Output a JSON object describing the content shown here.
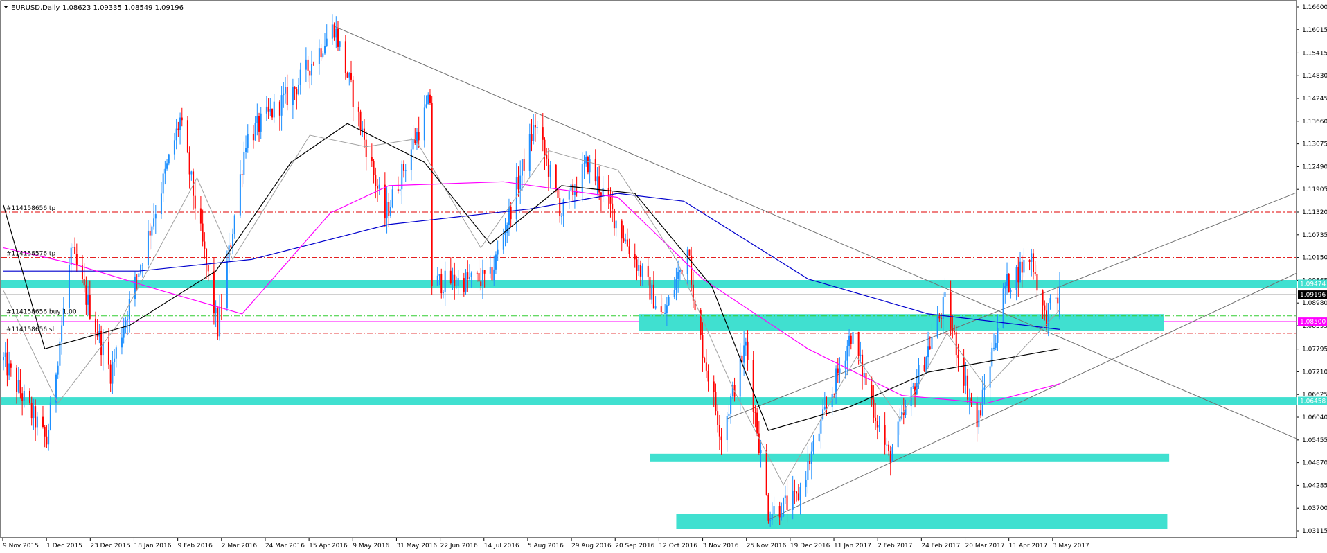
{
  "chart_data": {
    "type": "candlestick",
    "symbol_line": {
      "symbol": "EURUSD",
      "timeframe": "Daily",
      "title": "EURUSD,Daily",
      "ohlc_text": "1.08623 1.09335 1.08549 1.09196",
      "open": 1.08623,
      "high": 1.09335,
      "low": 1.08549,
      "close": 1.09196
    },
    "ylim": [
      1.03115,
      1.166
    ],
    "y_ticks": [
      "1.16600",
      "1.16015",
      "1.15415",
      "1.14830",
      "1.14245",
      "1.13660",
      "1.13075",
      "1.12490",
      "1.11905",
      "1.11320",
      "1.10735",
      "1.10150",
      "1.09565",
      "1.08980",
      "1.08395",
      "1.07795",
      "1.07210",
      "1.06625",
      "1.06040",
      "1.05455",
      "1.04870",
      "1.04285",
      "1.03700",
      "1.03115"
    ],
    "x_ticks": [
      "9 Nov 2015",
      "1 Dec 2015",
      "23 Dec 2015",
      "18 Jan 2016",
      "9 Feb 2016",
      "2 Mar 2016",
      "24 Mar 2016",
      "15 Apr 2016",
      "9 May 2016",
      "31 May 2016",
      "22 Jun 2016",
      "14 Jul 2016",
      "5 Aug 2016",
      "29 Aug 2016",
      "20 Sep 2016",
      "12 Oct 2016",
      "3 Nov 2016",
      "25 Nov 2016",
      "19 Dec 2016",
      "11 Jan 2017",
      "2 Feb 2017",
      "24 Feb 2017",
      "20 Mar 2017",
      "11 Apr 2017",
      "3 May 2017"
    ],
    "x_range": [
      "2015-11-09",
      "2017-05-24"
    ],
    "colors": {
      "bull": "#1E90FF",
      "bear": "#FF0000",
      "zone": "#40E0D0",
      "ma_blue": "#0000CD",
      "ma_magenta": "#FF00FF",
      "ma_black": "#000000",
      "ma_gray": "#A0A0A0",
      "trendline": "#707070",
      "order_line": "#E00000",
      "price_line": "#808080"
    },
    "key_points": [
      {
        "date": "2015-11-09",
        "price": 1.075
      },
      {
        "date": "2015-12-02",
        "price": 1.054
      },
      {
        "date": "2015-12-15",
        "price": 1.103
      },
      {
        "date": "2016-01-05",
        "price": 1.072
      },
      {
        "date": "2016-02-11",
        "price": 1.137
      },
      {
        "date": "2016-03-02",
        "price": 1.083
      },
      {
        "date": "2016-03-17",
        "price": 1.132
      },
      {
        "date": "2016-04-12",
        "price": 1.145
      },
      {
        "date": "2016-05-03",
        "price": 1.161
      },
      {
        "date": "2016-05-30",
        "price": 1.112
      },
      {
        "date": "2016-06-23",
        "price": 1.142
      },
      {
        "date": "2016-06-24",
        "price": 1.095
      },
      {
        "date": "2016-07-25",
        "price": 1.096
      },
      {
        "date": "2016-08-18",
        "price": 1.136
      },
      {
        "date": "2016-09-01",
        "price": 1.113
      },
      {
        "date": "2016-09-15",
        "price": 1.126
      },
      {
        "date": "2016-10-25",
        "price": 1.086
      },
      {
        "date": "2016-11-08",
        "price": 1.105
      },
      {
        "date": "2016-11-10",
        "price": 1.089
      },
      {
        "date": "2016-11-25",
        "price": 1.056
      },
      {
        "date": "2016-12-08",
        "price": 1.079
      },
      {
        "date": "2016-12-20",
        "price": 1.036
      },
      {
        "date": "2017-01-04",
        "price": 1.039
      },
      {
        "date": "2017-02-02",
        "price": 1.082
      },
      {
        "date": "2017-02-22",
        "price": 1.05
      },
      {
        "date": "2017-03-24",
        "price": 1.09
      },
      {
        "date": "2017-04-10",
        "price": 1.058
      },
      {
        "date": "2017-04-25",
        "price": 1.094
      },
      {
        "date": "2017-05-09",
        "price": 1.102
      },
      {
        "date": "2017-05-16",
        "price": 1.086
      },
      {
        "date": "2017-05-24",
        "price": 1.092
      }
    ],
    "horizontal_levels": [
      {
        "label": "#114158656 tp",
        "price": 1.1132,
        "kind": "order"
      },
      {
        "label": "#114158576 tp",
        "price": 1.1015,
        "kind": "order"
      },
      {
        "label": "#114158656 buy 1.00",
        "price": 1.0865,
        "kind": "entry"
      },
      {
        "label": "#114158656 sl",
        "price": 1.082,
        "kind": "order"
      },
      {
        "label": "1.09196",
        "price": 1.09196,
        "kind": "bid"
      }
    ],
    "zones": [
      {
        "label": "1.09474",
        "price": 1.09474
      },
      {
        "label": "1.08500",
        "price": 1.085
      },
      {
        "label": "",
        "price": 1.0848
      },
      {
        "label": "1.06458",
        "price": 1.06458
      },
      {
        "label": "",
        "price": 1.05
      },
      {
        "label": "",
        "price": 1.0335
      }
    ],
    "price_tags": [
      "1.09474",
      "1.09196",
      "1.08500",
      "1.06458"
    ],
    "moving_averages": [
      {
        "name": "MA200",
        "color": "#0000CD",
        "points": [
          [
            "2015-11-09",
            1.098
          ],
          [
            "2016-01-20",
            1.098
          ],
          [
            "2016-03-20",
            1.101
          ],
          [
            "2016-06-01",
            1.11
          ],
          [
            "2016-08-15",
            1.114
          ],
          [
            "2016-10-01",
            1.118
          ],
          [
            "2016-11-05",
            1.116
          ],
          [
            "2017-01-10",
            1.096
          ],
          [
            "2017-03-15",
            1.087
          ],
          [
            "2017-05-24",
            1.083
          ]
        ]
      },
      {
        "name": "MA100",
        "color": "#FF00FF",
        "points": [
          [
            "2015-11-09",
            1.104
          ],
          [
            "2015-12-15",
            1.1
          ],
          [
            "2016-02-01",
            1.093
          ],
          [
            "2016-03-15",
            1.087
          ],
          [
            "2016-05-01",
            1.113
          ],
          [
            "2016-06-01",
            1.12
          ],
          [
            "2016-08-01",
            1.121
          ],
          [
            "2016-10-01",
            1.117
          ],
          [
            "2016-11-15",
            1.096
          ],
          [
            "2017-01-10",
            1.078
          ],
          [
            "2017-03-01",
            1.066
          ],
          [
            "2017-04-15",
            1.064
          ],
          [
            "2017-05-24",
            1.069
          ]
        ]
      },
      {
        "name": "MA50",
        "color": "#000000",
        "points": [
          [
            "2015-11-09",
            1.115
          ],
          [
            "2015-12-01",
            1.078
          ],
          [
            "2016-01-15",
            1.084
          ],
          [
            "2016-03-01",
            1.098
          ],
          [
            "2016-04-10",
            1.126
          ],
          [
            "2016-05-10",
            1.136
          ],
          [
            "2016-06-20",
            1.126
          ],
          [
            "2016-07-25",
            1.105
          ],
          [
            "2016-09-01",
            1.12
          ],
          [
            "2016-10-10",
            1.118
          ],
          [
            "2016-11-20",
            1.094
          ],
          [
            "2016-12-20",
            1.057
          ],
          [
            "2017-02-01",
            1.063
          ],
          [
            "2017-03-15",
            1.072
          ],
          [
            "2017-05-24",
            1.078
          ]
        ]
      },
      {
        "name": "MA20",
        "color": "#A0A0A0",
        "points": [
          [
            "2015-11-09",
            1.093
          ],
          [
            "2015-12-08",
            1.064
          ],
          [
            "2016-01-10",
            1.085
          ],
          [
            "2016-02-20",
            1.122
          ],
          [
            "2016-03-10",
            1.101
          ],
          [
            "2016-04-20",
            1.133
          ],
          [
            "2016-05-20",
            1.13
          ],
          [
            "2016-06-15",
            1.132
          ],
          [
            "2016-07-20",
            1.104
          ],
          [
            "2016-08-25",
            1.129
          ],
          [
            "2016-10-01",
            1.124
          ],
          [
            "2016-11-01",
            1.101
          ],
          [
            "2016-12-01",
            1.068
          ],
          [
            "2016-12-28",
            1.043
          ],
          [
            "2017-02-05",
            1.076
          ],
          [
            "2017-02-28",
            1.06
          ],
          [
            "2017-03-25",
            1.082
          ],
          [
            "2017-04-15",
            1.068
          ],
          [
            "2017-05-24",
            1.088
          ]
        ]
      }
    ],
    "trendlines": [
      {
        "from": [
          "2016-05-03",
          1.161
        ],
        "to": [
          "2017-05-24",
          1.081
        ],
        "extends": true
      },
      {
        "from": [
          "2016-12-20",
          1.034
        ],
        "to": [
          "2017-05-24",
          1.069
        ],
        "extends": true
      },
      {
        "from": [
          "2016-11-28",
          1.06
        ],
        "to": [
          "2017-05-24",
          1.094
        ],
        "extends": true
      }
    ]
  }
}
